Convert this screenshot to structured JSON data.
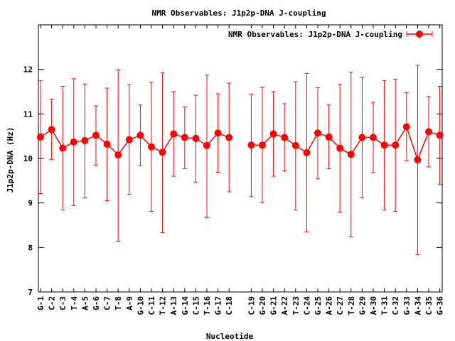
{
  "chart_data": {
    "type": "line",
    "title": "NMR Observables: J1p2p-DNA J-coupling",
    "xlabel": "Nucleotide",
    "ylabel": "J1p2p-DNA (Hz)",
    "ylim": [
      7,
      13
    ],
    "yticks": [
      7,
      8,
      9,
      10,
      11,
      12
    ],
    "grid": false,
    "legend_position": "top-right",
    "series": [
      {
        "name": "NMR Observables: J1p2p-DNA J-coupling",
        "color": "#ff0000",
        "marker": "circle",
        "error_bars": true,
        "points": [
          {
            "label": "G-1",
            "y": 10.48,
            "ylow": 9.21,
            "yhigh": 11.75
          },
          {
            "label": "C-2",
            "y": 10.65,
            "ylow": 9.98,
            "yhigh": 11.33
          },
          {
            "label": "C-3",
            "y": 10.23,
            "ylow": 8.84,
            "yhigh": 11.62
          },
          {
            "label": "T-4",
            "y": 10.37,
            "ylow": 8.94,
            "yhigh": 11.79
          },
          {
            "label": "A-5",
            "y": 10.4,
            "ylow": 9.12,
            "yhigh": 11.67
          },
          {
            "label": "G-6",
            "y": 10.52,
            "ylow": 9.85,
            "yhigh": 11.18
          },
          {
            "label": "C-7",
            "y": 10.32,
            "ylow": 9.05,
            "yhigh": 11.58
          },
          {
            "label": "T-8",
            "y": 10.08,
            "ylow": 8.14,
            "yhigh": 11.99
          },
          {
            "label": "A-9",
            "y": 10.42,
            "ylow": 9.19,
            "yhigh": 11.66
          },
          {
            "label": "G-10",
            "y": 10.52,
            "ylow": 9.84,
            "yhigh": 11.2
          },
          {
            "label": "C-11",
            "y": 10.26,
            "ylow": 8.81,
            "yhigh": 11.71
          },
          {
            "label": "T-12",
            "y": 10.14,
            "ylow": 8.33,
            "yhigh": 11.93
          },
          {
            "label": "A-13",
            "y": 10.55,
            "ylow": 9.6,
            "yhigh": 11.5
          },
          {
            "label": "G-14",
            "y": 10.47,
            "ylow": 9.77,
            "yhigh": 11.16
          },
          {
            "label": "C-15",
            "y": 10.45,
            "ylow": 9.47,
            "yhigh": 11.42
          },
          {
            "label": "T-16",
            "y": 10.29,
            "ylow": 8.67,
            "yhigh": 11.87
          },
          {
            "label": "G-17",
            "y": 10.57,
            "ylow": 9.69,
            "yhigh": 11.45
          },
          {
            "label": "C-18",
            "y": 10.47,
            "ylow": 9.25,
            "yhigh": 11.69
          },
          {
            "label": "C-19",
            "y": 10.3,
            "ylow": 9.14,
            "yhigh": 11.44
          },
          {
            "label": "G-20",
            "y": 10.3,
            "ylow": 9.01,
            "yhigh": 11.6
          },
          {
            "label": "G-21",
            "y": 10.55,
            "ylow": 9.6,
            "yhigh": 11.5
          },
          {
            "label": "A-22",
            "y": 10.47,
            "ylow": 9.72,
            "yhigh": 11.23
          },
          {
            "label": "T-23",
            "y": 10.29,
            "ylow": 8.84,
            "yhigh": 11.72
          },
          {
            "label": "C-24",
            "y": 10.13,
            "ylow": 8.35,
            "yhigh": 11.91
          },
          {
            "label": "G-25",
            "y": 10.57,
            "ylow": 9.54,
            "yhigh": 11.59
          },
          {
            "label": "A-26",
            "y": 10.48,
            "ylow": 9.77,
            "yhigh": 11.2
          },
          {
            "label": "C-27",
            "y": 10.23,
            "ylow": 8.79,
            "yhigh": 11.66
          },
          {
            "label": "T-28",
            "y": 10.09,
            "ylow": 8.24,
            "yhigh": 11.94
          },
          {
            "label": "G-29",
            "y": 10.47,
            "ylow": 9.12,
            "yhigh": 11.82
          },
          {
            "label": "A-30",
            "y": 10.47,
            "ylow": 9.68,
            "yhigh": 11.26
          },
          {
            "label": "T-31",
            "y": 10.3,
            "ylow": 8.84,
            "yhigh": 11.75
          },
          {
            "label": "C-32",
            "y": 10.3,
            "ylow": 8.81,
            "yhigh": 11.78
          },
          {
            "label": "G-33",
            "y": 10.71,
            "ylow": 9.95,
            "yhigh": 11.48
          },
          {
            "label": "A-34",
            "y": 9.97,
            "ylow": 7.84,
            "yhigh": 12.09
          },
          {
            "label": "C-35",
            "y": 10.6,
            "ylow": 9.81,
            "yhigh": 11.39
          },
          {
            "label": "G-36",
            "y": 10.52,
            "ylow": 9.42,
            "yhigh": 11.62
          }
        ]
      }
    ]
  }
}
